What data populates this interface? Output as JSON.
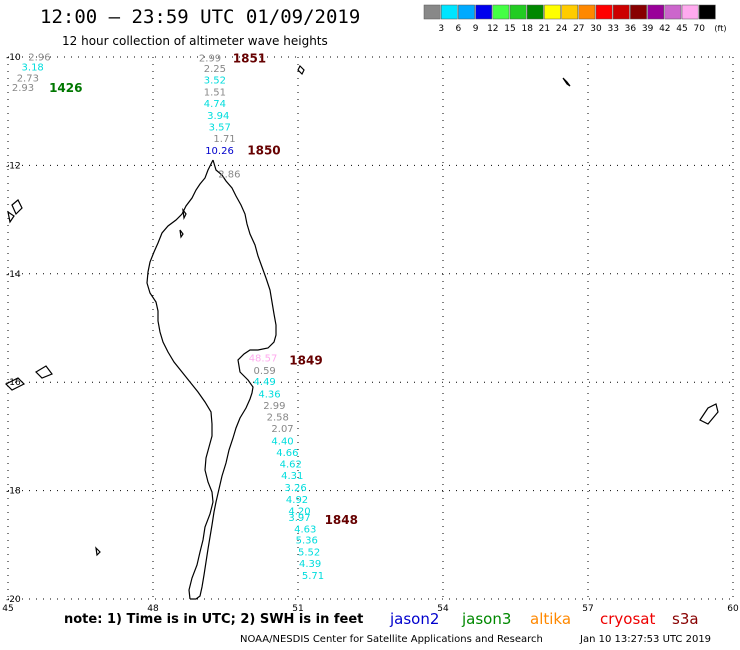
{
  "header": {
    "title": "12:00 – 23:59 UTC 01/09/2019",
    "subtitle": "12 hour collection of altimeter wave heights"
  },
  "legend": {
    "unit": "(ft)",
    "bins": [
      {
        "label": "3",
        "color": "#888888"
      },
      {
        "label": "6",
        "color": "#00e5ff"
      },
      {
        "label": "9",
        "color": "#00aaff"
      },
      {
        "label": "12",
        "color": "#0000ee"
      },
      {
        "label": "15",
        "color": "#44ff44"
      },
      {
        "label": "18",
        "color": "#22cc22"
      },
      {
        "label": "21",
        "color": "#008800"
      },
      {
        "label": "24",
        "color": "#ffff00"
      },
      {
        "label": "27",
        "color": "#ffcc00"
      },
      {
        "label": "30",
        "color": "#ff8800"
      },
      {
        "label": "33",
        "color": "#ff0000"
      },
      {
        "label": "36",
        "color": "#cc0000"
      },
      {
        "label": "39",
        "color": "#880000"
      },
      {
        "label": "42",
        "color": "#990099"
      },
      {
        "label": "45",
        "color": "#cc66cc"
      },
      {
        "label": "70",
        "color": "#ffaaee"
      },
      {
        "label": "",
        "color": "#000000"
      }
    ]
  },
  "map": {
    "lon_range": [
      45,
      60
    ],
    "lat_range": [
      -20,
      -10
    ],
    "lon_ticks": [
      "45",
      "48",
      "51",
      "54",
      "57",
      "60"
    ],
    "lat_ticks": [
      "-10",
      "-12",
      "-14",
      "-16",
      "-18",
      "-20"
    ],
    "graticule_style": "dotted",
    "coastline_color": "#000000"
  },
  "observations": [
    {
      "value": "2.96",
      "lon": 45.42,
      "lat": -10.06,
      "color": "#888888"
    },
    {
      "value": "3.18",
      "lon": 45.28,
      "lat": -10.25,
      "color": "#00dddd"
    },
    {
      "value": "2.73",
      "lon": 45.18,
      "lat": -10.45,
      "color": "#888888"
    },
    {
      "value": "2.93",
      "lon": 45.08,
      "lat": -10.63,
      "color": "#888888"
    },
    {
      "value": "2.99",
      "lon": 48.95,
      "lat": -10.08,
      "color": "#888888"
    },
    {
      "value": "2.25",
      "lon": 49.05,
      "lat": -10.28,
      "color": "#888888"
    },
    {
      "value": "3.52",
      "lon": 49.05,
      "lat": -10.49,
      "color": "#00dddd"
    },
    {
      "value": "1.51",
      "lon": 49.05,
      "lat": -10.71,
      "color": "#888888"
    },
    {
      "value": "4.74",
      "lon": 49.05,
      "lat": -10.92,
      "color": "#00dddd"
    },
    {
      "value": "3.94",
      "lon": 49.12,
      "lat": -11.14,
      "color": "#00dddd"
    },
    {
      "value": "3.57",
      "lon": 49.15,
      "lat": -11.36,
      "color": "#00dddd"
    },
    {
      "value": "1.71",
      "lon": 49.25,
      "lat": -11.57,
      "color": "#888888"
    },
    {
      "value": "10.26",
      "lon": 49.08,
      "lat": -11.79,
      "color": "#0000cc"
    },
    {
      "value": "2.86",
      "lon": 49.35,
      "lat": -12.22,
      "color": "#888888"
    },
    {
      "value": "48.57",
      "lon": 49.98,
      "lat": -15.62,
      "color": "#ffaaee"
    },
    {
      "value": "0.59",
      "lon": 50.08,
      "lat": -15.85,
      "color": "#888888"
    },
    {
      "value": "4.49",
      "lon": 50.08,
      "lat": -16.05,
      "color": "#00dddd"
    },
    {
      "value": "4.36",
      "lon": 50.18,
      "lat": -16.28,
      "color": "#00dddd"
    },
    {
      "value": "2.99",
      "lon": 50.28,
      "lat": -16.49,
      "color": "#888888"
    },
    {
      "value": "2.58",
      "lon": 50.35,
      "lat": -16.71,
      "color": "#888888"
    },
    {
      "value": "2.07",
      "lon": 50.45,
      "lat": -16.92,
      "color": "#888888"
    },
    {
      "value": "4.40",
      "lon": 50.45,
      "lat": -17.15,
      "color": "#00dddd"
    },
    {
      "value": "4.66",
      "lon": 50.55,
      "lat": -17.36,
      "color": "#00dddd"
    },
    {
      "value": "4.62",
      "lon": 50.62,
      "lat": -17.57,
      "color": "#00dddd"
    },
    {
      "value": "4.31",
      "lon": 50.65,
      "lat": -17.79,
      "color": "#00dddd"
    },
    {
      "value": "3.26",
      "lon": 50.72,
      "lat": -18.01,
      "color": "#00dddd"
    },
    {
      "value": "4.92",
      "lon": 50.75,
      "lat": -18.23,
      "color": "#00dddd"
    },
    {
      "value": "4.20",
      "lon": 50.8,
      "lat": -18.44,
      "color": "#00dddd"
    },
    {
      "value": "3.97",
      "lon": 50.8,
      "lat": -18.56,
      "color": "#00dddd"
    },
    {
      "value": "4.63",
      "lon": 50.92,
      "lat": -18.77,
      "color": "#00dddd"
    },
    {
      "value": "5.36",
      "lon": 50.95,
      "lat": -18.98,
      "color": "#00dddd"
    },
    {
      "value": "5.52",
      "lon": 51.0,
      "lat": -19.2,
      "color": "#00dddd"
    },
    {
      "value": "4.39",
      "lon": 51.02,
      "lat": -19.41,
      "color": "#00dddd"
    },
    {
      "value": "5.71",
      "lon": 51.08,
      "lat": -19.63,
      "color": "#00dddd"
    }
  ],
  "pass_times": [
    {
      "label": "1426",
      "lon": 45.85,
      "lat": -10.65,
      "color": "#007700"
    },
    {
      "label": "1851",
      "lon": 49.65,
      "lat": -10.1,
      "color": "#660000"
    },
    {
      "label": "1850",
      "lon": 49.95,
      "lat": -11.8,
      "color": "#660000"
    },
    {
      "label": "1849",
      "lon": 50.82,
      "lat": -15.67,
      "color": "#660000"
    },
    {
      "label": "1848",
      "lon": 51.55,
      "lat": -18.62,
      "color": "#660000"
    }
  ],
  "footer": {
    "note": "note: 1) Time is in UTC; 2) SWH is in feet",
    "credit": "NOAA/NESDIS Center for Satellite Applications and Research",
    "timestamp": "Jan 10 13:27:53 UTC 2019",
    "satellites": [
      {
        "name": "jason2",
        "color": "#0000cc"
      },
      {
        "name": "jason3",
        "color": "#008800"
      },
      {
        "name": "altika",
        "color": "#ff8800"
      },
      {
        "name": "cryosat",
        "color": "#ee0000"
      },
      {
        "name": "s3a",
        "color": "#880000"
      }
    ]
  }
}
